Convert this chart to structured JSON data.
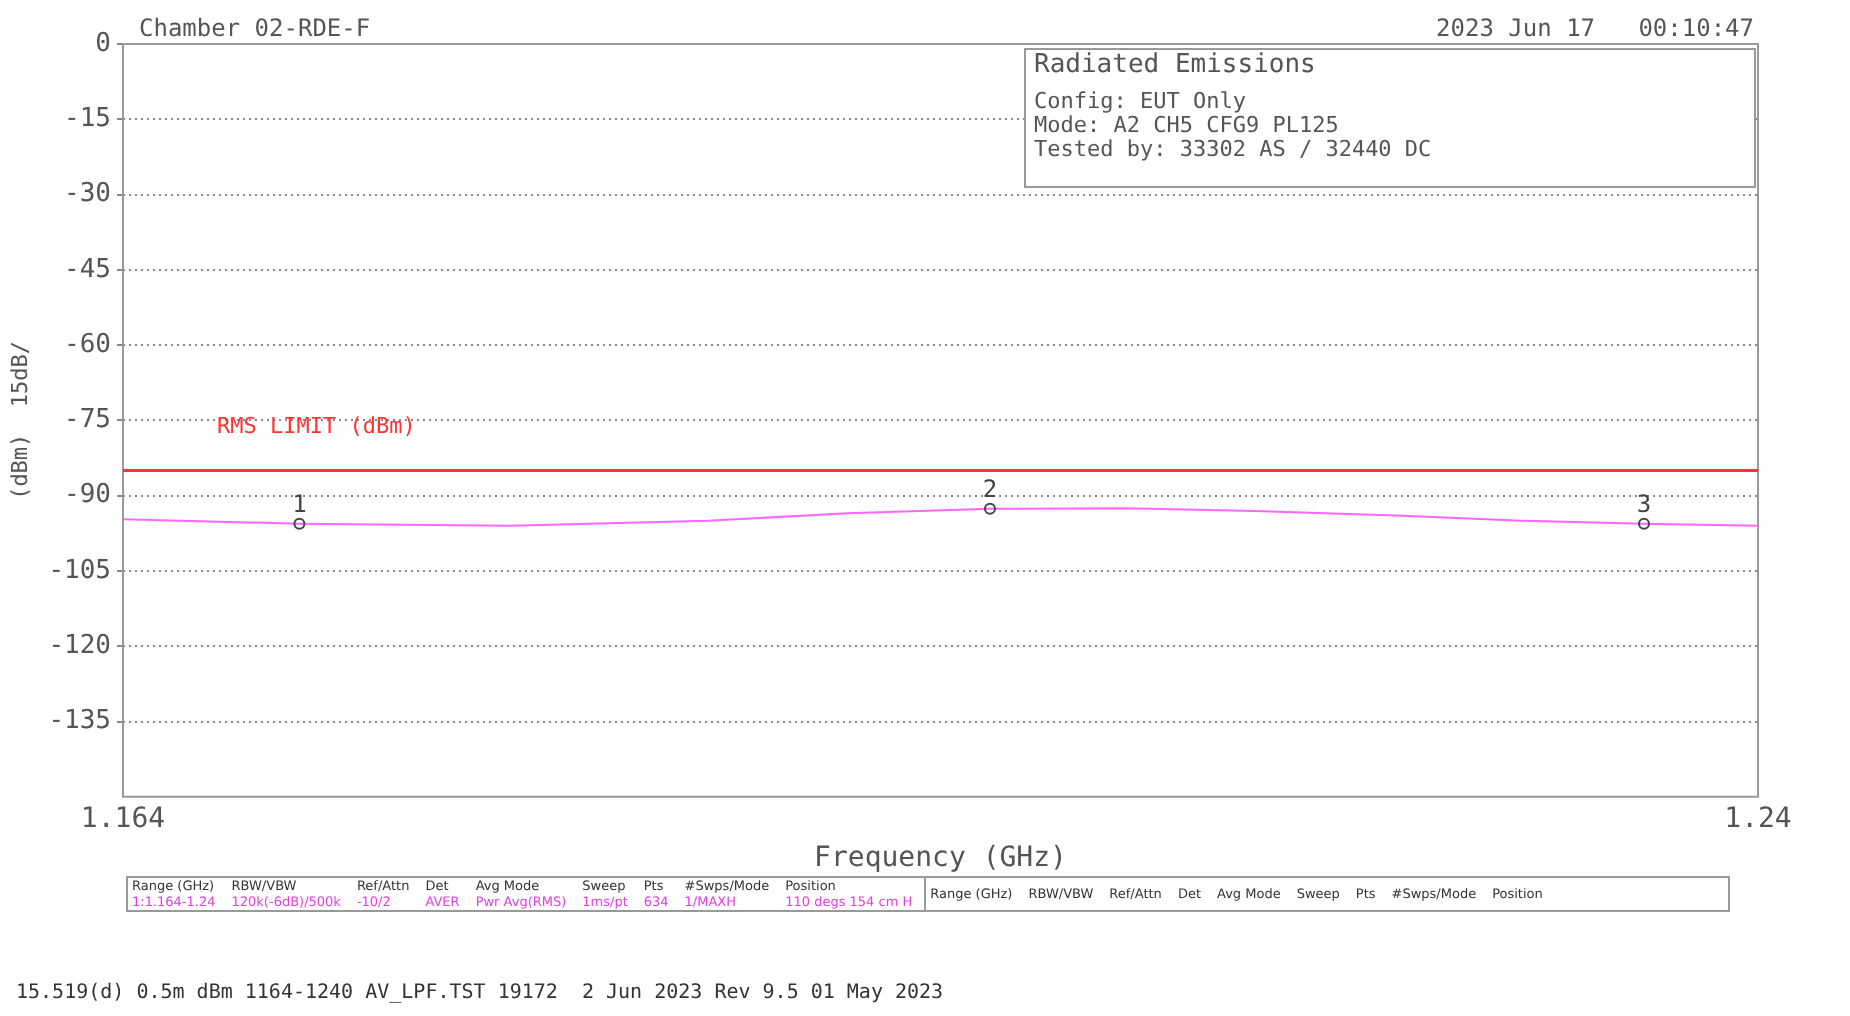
{
  "chart_data": {
    "type": "line",
    "title": "Chamber 02-RDE-F",
    "subtitle": "2023 Jun 17   00:10:47",
    "xlabel": "Frequency (GHz)",
    "ylabel": "(dBm)  15dB/",
    "x": [
      1.164,
      1.1722,
      1.182,
      1.1912,
      1.1977,
      1.2043,
      1.2106,
      1.2161,
      1.2235,
      1.229,
      1.2347,
      1.24
    ],
    "series": [
      {
        "color": "#ff66ff",
        "values": [
          -94.7,
          -95.6,
          -96.0,
          -95.0,
          -93.5,
          -92.6,
          -92.5,
          -93.0,
          -94.0,
          -95.0,
          -95.6,
          -96.0
        ]
      }
    ],
    "xlim": [
      1.164,
      1.24
    ],
    "xticks": [
      1.164,
      1.24
    ],
    "ylim": [
      -150,
      0
    ],
    "yticks": [
      0,
      -15,
      -30,
      -45,
      -60,
      -75,
      -90,
      -105,
      -120,
      -135
    ],
    "grid": "y",
    "ref_lines": [
      {
        "axis": "y",
        "value": -85,
        "label": "RMS LIMIT (dBm)",
        "color": "#ff3333"
      }
    ],
    "annotations": [
      "Radiated Emissions",
      "Config: EUT Only",
      "Mode: A2 CH5 CFG9 PL125",
      "Tested by: 33302 AS / 32440 DC",
      "Range (GHz)",
      "RBW/VBW",
      "Ref/Attn",
      "Det",
      "Avg Mode",
      "Sweep",
      "Pts",
      "#Swps/Mode",
      "Position",
      "1:1.164-1.24",
      "120k(-6dB)/500k",
      "-10/2",
      "AVER",
      "Pwr Avg(RMS)",
      "1ms/pt",
      "634",
      "1/MAXH",
      "110 degs 154 cm H",
      "Range (GHz)",
      "RBW/VBW",
      "Ref/Attn",
      "Det",
      "Avg Mode",
      "Sweep",
      "Pts",
      "#Swps/Mode",
      "Position",
      "15.519(d) 0.5m dBm 1164-1240 AV_LPF.TST 19172  2 Jun 2023 Rev 9.5 01 May 2023",
      {
        "text": "1",
        "x": 1.1722,
        "y": -95.6
      },
      {
        "text": "2",
        "x": 1.2043,
        "y": -92.6
      },
      {
        "text": "3",
        "x": 1.2347,
        "y": -95.6
      }
    ]
  }
}
